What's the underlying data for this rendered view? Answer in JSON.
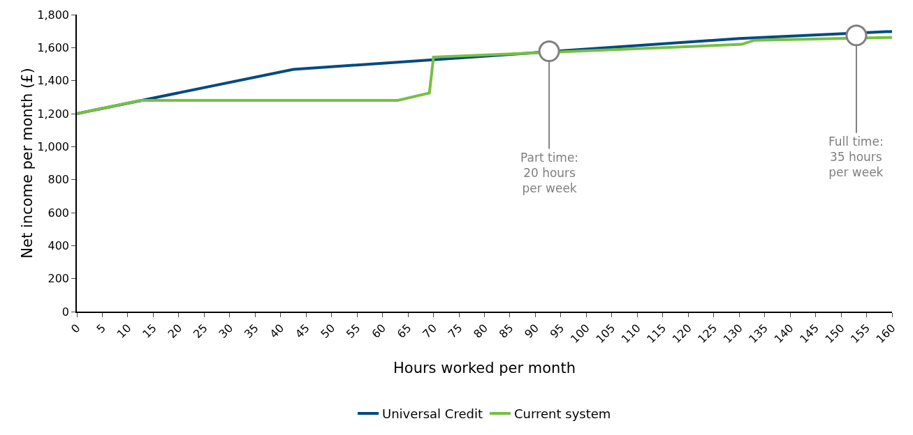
{
  "chart_data": {
    "type": "line",
    "xlabel": "Hours worked per month",
    "ylabel": "Net income per month (£)",
    "xlim": [
      0,
      160
    ],
    "xticks": [
      0,
      5,
      10,
      15,
      20,
      25,
      30,
      35,
      40,
      45,
      50,
      55,
      60,
      65,
      70,
      75,
      80,
      85,
      90,
      95,
      100,
      105,
      110,
      115,
      120,
      125,
      130,
      135,
      140,
      145,
      150,
      155,
      160
    ],
    "ylim": [
      0,
      1800
    ],
    "yticks": [
      {
        "value": 0,
        "label": "0"
      },
      {
        "value": 200,
        "label": "200"
      },
      {
        "value": 400,
        "label": "400"
      },
      {
        "value": 600,
        "label": "600"
      },
      {
        "value": 800,
        "label": "800"
      },
      {
        "value": 1000,
        "label": "1,000"
      },
      {
        "value": 1200,
        "label": "1,200"
      },
      {
        "value": 1400,
        "label": "1,400"
      },
      {
        "value": 1600,
        "label": "1,600"
      },
      {
        "value": 1800,
        "label": "1,800"
      }
    ],
    "grid": false,
    "legend": "bottom",
    "marker": "none",
    "line_style": "solid",
    "series": [
      {
        "name": "Universal Credit",
        "color": "#004a80",
        "x": [
          0,
          42.5,
          130,
          160
        ],
        "values": [
          1200,
          1468,
          1655,
          1698
        ]
      },
      {
        "name": "Current system",
        "color": "#76c043",
        "x": [
          0,
          12.5,
          63,
          69.2,
          70,
          130.5,
          133,
          160
        ],
        "values": [
          1200,
          1280,
          1280,
          1325,
          1543,
          1620,
          1645,
          1662
        ]
      }
    ],
    "annotations": [
      {
        "text": "Part time:\n20 hours\nper week",
        "x": 92.7,
        "y": 1578
      },
      {
        "text": "Full time:\n35 hours\nper week",
        "x": 153,
        "y": 1674
      }
    ]
  }
}
